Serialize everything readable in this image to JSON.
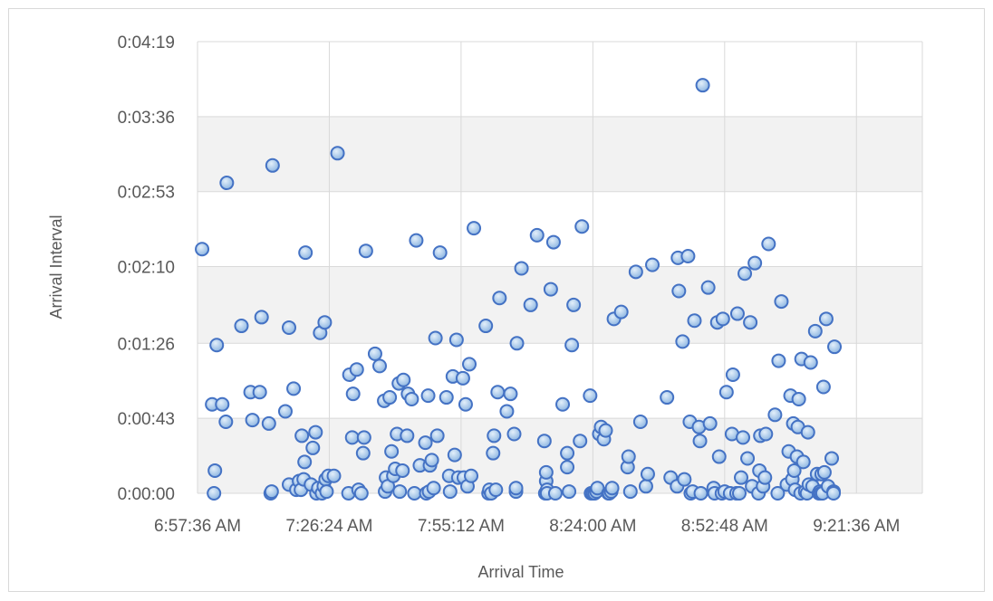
{
  "chart_data": {
    "type": "scatter",
    "title": "",
    "xlabel": "Arrival Time",
    "ylabel": "Arrival Interval",
    "x_ticks": [
      "6:57:36 AM",
      "7:26:24 AM",
      "7:55:12 AM",
      "8:24:00 AM",
      "8:52:48 AM",
      "9:21:36 AM"
    ],
    "y_ticks": [
      "0:00:00",
      "0:00:43",
      "0:01:26",
      "0:02:10",
      "0:02:53",
      "0:03:36",
      "0:04:19"
    ],
    "xlim": [
      "6:57:36 AM",
      "9:36:00 AM"
    ],
    "ylim": [
      "0:00:00",
      "0:04:19"
    ],
    "grid": true,
    "legend": "none",
    "colors": {
      "marker_fill": "#9dc3e6",
      "marker_stroke": "#4472c4",
      "grid": "#d9d9d9",
      "text": "#595959",
      "band": "#f2f2f2"
    },
    "series": [
      {
        "points": [
          [
            "6:58:36 AM",
            "0:02:20"
          ],
          [
            "7:00:48 AM",
            "0:00:51"
          ],
          [
            "7:01:12 AM",
            "0:00:00"
          ],
          [
            "7:01:24 AM",
            "0:00:13"
          ],
          [
            "7:01:48 AM",
            "0:01:25"
          ],
          [
            "7:03:00 AM",
            "0:00:51"
          ],
          [
            "7:03:48 AM",
            "0:00:41"
          ],
          [
            "7:04:00 AM",
            "0:02:58"
          ],
          [
            "7:07:12 AM",
            "0:01:36"
          ],
          [
            "7:09:12 AM",
            "0:00:58"
          ],
          [
            "7:09:36 AM",
            "0:00:42"
          ],
          [
            "7:11:12 AM",
            "0:00:58"
          ],
          [
            "7:11:36 AM",
            "0:01:41"
          ],
          [
            "7:13:12 AM",
            "0:00:40"
          ],
          [
            "7:13:36 AM",
            "0:00:00"
          ],
          [
            "7:13:48 AM",
            "0:00:01"
          ],
          [
            "7:14:00 AM",
            "0:03:08"
          ],
          [
            "7:16:48 AM",
            "0:00:47"
          ],
          [
            "7:17:36 AM",
            "0:00:05"
          ],
          [
            "7:17:36 AM",
            "0:01:35"
          ],
          [
            "7:18:36 AM",
            "0:01:00"
          ],
          [
            "7:19:12 AM",
            "0:00:02"
          ],
          [
            "7:19:48 AM",
            "0:00:07"
          ],
          [
            "7:20:12 AM",
            "0:00:02"
          ],
          [
            "7:20:24 AM",
            "0:00:33"
          ],
          [
            "7:20:48 AM",
            "0:00:08"
          ],
          [
            "7:21:00 AM",
            "0:00:18"
          ],
          [
            "7:21:12 AM",
            "0:02:18"
          ],
          [
            "7:22:24 AM",
            "0:00:05"
          ],
          [
            "7:22:48 AM",
            "0:00:26"
          ],
          [
            "7:23:24 AM",
            "0:00:35"
          ],
          [
            "7:23:36 AM",
            "0:00:00"
          ],
          [
            "7:24:00 AM",
            "0:00:03"
          ],
          [
            "7:24:24 AM",
            "0:01:32"
          ],
          [
            "7:24:48 AM",
            "0:00:00"
          ],
          [
            "7:25:12 AM",
            "0:00:04"
          ],
          [
            "7:25:24 AM",
            "0:01:38"
          ],
          [
            "7:25:36 AM",
            "0:00:08"
          ],
          [
            "7:25:48 AM",
            "0:00:01"
          ],
          [
            "7:26:12 AM",
            "0:00:10"
          ],
          [
            "7:27:24 AM",
            "0:00:10"
          ],
          [
            "7:28:12 AM",
            "0:03:15"
          ],
          [
            "7:30:36 AM",
            "0:00:00"
          ],
          [
            "7:30:48 AM",
            "0:01:08"
          ],
          [
            "7:31:24 AM",
            "0:00:32"
          ],
          [
            "7:31:36 AM",
            "0:00:57"
          ],
          [
            "7:32:24 AM",
            "0:01:11"
          ],
          [
            "7:32:48 AM",
            "0:00:02"
          ],
          [
            "7:33:24 AM",
            "0:00:00"
          ],
          [
            "7:33:48 AM",
            "0:00:23"
          ],
          [
            "7:34:00 AM",
            "0:00:32"
          ],
          [
            "7:34:24 AM",
            "0:02:19"
          ],
          [
            "7:36:24 AM",
            "0:01:20"
          ],
          [
            "7:37:24 AM",
            "0:01:13"
          ],
          [
            "7:38:24 AM",
            "0:00:53"
          ],
          [
            "7:38:36 AM",
            "0:00:01"
          ],
          [
            "7:38:48 AM",
            "0:00:09"
          ],
          [
            "7:39:12 AM",
            "0:00:04"
          ],
          [
            "7:39:36 AM",
            "0:00:55"
          ],
          [
            "7:40:00 AM",
            "0:00:24"
          ],
          [
            "7:40:24 AM",
            "0:00:10"
          ],
          [
            "7:40:48 AM",
            "0:00:14"
          ],
          [
            "7:41:12 AM",
            "0:00:34"
          ],
          [
            "7:41:36 AM",
            "0:01:03"
          ],
          [
            "7:41:48 AM",
            "0:00:01"
          ],
          [
            "7:42:24 AM",
            "0:00:13"
          ],
          [
            "7:42:36 AM",
            "0:01:05"
          ],
          [
            "7:43:24 AM",
            "0:00:33"
          ],
          [
            "7:43:36 AM",
            "0:00:57"
          ],
          [
            "7:44:24 AM",
            "0:00:54"
          ],
          [
            "7:45:00 AM",
            "0:00:00"
          ],
          [
            "7:45:24 AM",
            "0:02:25"
          ],
          [
            "7:46:12 AM",
            "0:00:16"
          ],
          [
            "7:47:24 AM",
            "0:00:29"
          ],
          [
            "7:47:36 AM",
            "0:00:00"
          ],
          [
            "7:48:00 AM",
            "0:00:56"
          ],
          [
            "7:48:12 AM",
            "0:00:01"
          ],
          [
            "7:48:24 AM",
            "0:00:16"
          ],
          [
            "7:48:48 AM",
            "0:00:19"
          ],
          [
            "7:49:12 AM",
            "0:00:03"
          ],
          [
            "7:49:36 AM",
            "0:01:29"
          ],
          [
            "7:50:00 AM",
            "0:00:33"
          ],
          [
            "7:50:36 AM",
            "0:02:18"
          ],
          [
            "7:52:00 AM",
            "0:00:55"
          ],
          [
            "7:52:36 AM",
            "0:00:10"
          ],
          [
            "7:52:48 AM",
            "0:00:01"
          ],
          [
            "7:53:24 AM",
            "0:01:07"
          ],
          [
            "7:53:48 AM",
            "0:00:22"
          ],
          [
            "7:54:12 AM",
            "0:01:28"
          ],
          [
            "7:54:36 AM",
            "0:00:09"
          ],
          [
            "7:55:36 AM",
            "0:01:06"
          ],
          [
            "7:55:48 AM",
            "0:00:09"
          ],
          [
            "7:56:12 AM",
            "0:00:51"
          ],
          [
            "7:56:36 AM",
            "0:00:04"
          ],
          [
            "7:57:00 AM",
            "0:01:14"
          ],
          [
            "7:57:24 AM",
            "0:00:10"
          ],
          [
            "7:58:00 AM",
            "0:02:32"
          ],
          [
            "8:00:36 AM",
            "0:01:36"
          ],
          [
            "8:01:12 AM",
            "0:00:00"
          ],
          [
            "8:01:24 AM",
            "0:00:02"
          ],
          [
            "8:01:48 AM",
            "0:00:00"
          ],
          [
            "8:02:12 AM",
            "0:00:23"
          ],
          [
            "8:02:24 AM",
            "0:00:33"
          ],
          [
            "8:02:48 AM",
            "0:00:02"
          ],
          [
            "8:03:12 AM",
            "0:00:58"
          ],
          [
            "8:03:36 AM",
            "0:01:52"
          ],
          [
            "8:05:12 AM",
            "0:00:47"
          ],
          [
            "8:06:00 AM",
            "0:00:57"
          ],
          [
            "8:06:48 AM",
            "0:00:34"
          ],
          [
            "8:07:12 AM",
            "0:00:01"
          ],
          [
            "8:07:12 AM",
            "0:00:03"
          ],
          [
            "8:07:24 AM",
            "0:01:26"
          ],
          [
            "8:08:24 AM",
            "0:02:09"
          ],
          [
            "8:10:24 AM",
            "0:01:48"
          ],
          [
            "8:11:48 AM",
            "0:02:28"
          ],
          [
            "8:13:24 AM",
            "0:00:30"
          ],
          [
            "8:13:36 AM",
            "0:00:00"
          ],
          [
            "8:13:48 AM",
            "0:00:07"
          ],
          [
            "8:13:48 AM",
            "0:00:12"
          ],
          [
            "8:14:00 AM",
            "0:00:02"
          ],
          [
            "8:14:00 AM",
            "0:00:00"
          ],
          [
            "8:14:48 AM",
            "0:01:57"
          ],
          [
            "8:15:24 AM",
            "0:02:24"
          ],
          [
            "8:15:48 AM",
            "0:00:00"
          ],
          [
            "8:17:24 AM",
            "0:00:51"
          ],
          [
            "8:18:24 AM",
            "0:00:23"
          ],
          [
            "8:18:24 AM",
            "0:00:15"
          ],
          [
            "8:18:48 AM",
            "0:00:01"
          ],
          [
            "8:19:24 AM",
            "0:01:25"
          ],
          [
            "8:19:48 AM",
            "0:01:48"
          ],
          [
            "8:21:12 AM",
            "0:00:30"
          ],
          [
            "8:21:36 AM",
            "0:02:33"
          ],
          [
            "8:23:24 AM",
            "0:00:56"
          ],
          [
            "8:23:36 AM",
            "0:00:00"
          ],
          [
            "8:24:00 AM",
            "0:00:00"
          ],
          [
            "8:24:24 AM",
            "0:00:00"
          ],
          [
            "8:24:48 AM",
            "0:00:01"
          ],
          [
            "8:25:00 AM",
            "0:00:03"
          ],
          [
            "8:25:24 AM",
            "0:00:34"
          ],
          [
            "8:25:48 AM",
            "0:00:38"
          ],
          [
            "8:26:24 AM",
            "0:00:31"
          ],
          [
            "8:26:48 AM",
            "0:00:36"
          ],
          [
            "8:27:24 AM",
            "0:00:00"
          ],
          [
            "8:27:36 AM",
            "0:00:00"
          ],
          [
            "8:28:00 AM",
            "0:00:01"
          ],
          [
            "8:28:12 AM",
            "0:00:03"
          ],
          [
            "8:28:36 AM",
            "0:01:40"
          ],
          [
            "8:30:12 AM",
            "0:01:44"
          ],
          [
            "8:31:36 AM",
            "0:00:15"
          ],
          [
            "8:31:48 AM",
            "0:00:21"
          ],
          [
            "8:32:12 AM",
            "0:00:01"
          ],
          [
            "8:33:24 AM",
            "0:02:07"
          ],
          [
            "8:34:24 AM",
            "0:00:41"
          ],
          [
            "8:35:36 AM",
            "0:00:04"
          ],
          [
            "8:36:00 AM",
            "0:00:11"
          ],
          [
            "8:37:00 AM",
            "0:02:11"
          ],
          [
            "8:40:12 AM",
            "0:00:55"
          ],
          [
            "8:41:00 AM",
            "0:00:09"
          ],
          [
            "8:42:24 AM",
            "0:00:04"
          ],
          [
            "8:42:36 AM",
            "0:02:15"
          ],
          [
            "8:42:48 AM",
            "0:01:56"
          ],
          [
            "8:43:36 AM",
            "0:01:27"
          ],
          [
            "8:44:00 AM",
            "0:00:08"
          ],
          [
            "8:44:48 AM",
            "0:02:16"
          ],
          [
            "8:45:12 AM",
            "0:00:41"
          ],
          [
            "8:45:24 AM",
            "0:00:00"
          ],
          [
            "8:45:48 AM",
            "0:00:01"
          ],
          [
            "8:46:12 AM",
            "0:01:39"
          ],
          [
            "8:47:12 AM",
            "0:00:38"
          ],
          [
            "8:47:24 AM",
            "0:00:30"
          ],
          [
            "8:47:36 AM",
            "0:00:00"
          ],
          [
            "8:48:00 AM",
            "0:03:54"
          ],
          [
            "8:49:12 AM",
            "0:01:58"
          ],
          [
            "8:49:36 AM",
            "0:00:40"
          ],
          [
            "8:50:24 AM",
            "0:00:03"
          ],
          [
            "8:50:36 AM",
            "0:00:00"
          ],
          [
            "8:51:12 AM",
            "0:01:38"
          ],
          [
            "8:51:36 AM",
            "0:00:21"
          ],
          [
            "8:52:12 AM",
            "0:00:00"
          ],
          [
            "8:52:24 AM",
            "0:01:40"
          ],
          [
            "8:52:48 AM",
            "0:00:01"
          ],
          [
            "8:53:12 AM",
            "0:00:58"
          ],
          [
            "8:54:00 AM",
            "0:00:00"
          ],
          [
            "8:54:24 AM",
            "0:00:34"
          ],
          [
            "8:54:36 AM",
            "0:01:08"
          ],
          [
            "8:55:24 AM",
            "0:00:00"
          ],
          [
            "8:55:36 AM",
            "0:01:43"
          ],
          [
            "8:56:00 AM",
            "0:00:00"
          ],
          [
            "8:56:24 AM",
            "0:00:09"
          ],
          [
            "8:56:48 AM",
            "0:00:32"
          ],
          [
            "8:57:12 AM",
            "0:02:06"
          ],
          [
            "8:57:48 AM",
            "0:00:20"
          ],
          [
            "8:58:24 AM",
            "0:01:38"
          ],
          [
            "8:58:48 AM",
            "0:00:04"
          ],
          [
            "8:59:24 AM",
            "0:02:12"
          ],
          [
            "9:00:12 AM",
            "0:00:00"
          ],
          [
            "9:00:24 AM",
            "0:00:13"
          ],
          [
            "9:00:36 AM",
            "0:00:33"
          ],
          [
            "9:01:12 AM",
            "0:00:04"
          ],
          [
            "9:01:36 AM",
            "0:00:09"
          ],
          [
            "9:01:48 AM",
            "0:00:34"
          ],
          [
            "9:02:24 AM",
            "0:02:23"
          ],
          [
            "9:03:48 AM",
            "0:00:45"
          ],
          [
            "9:04:24 AM",
            "0:00:00"
          ],
          [
            "9:04:36 AM",
            "0:01:16"
          ],
          [
            "9:05:12 AM",
            "0:01:50"
          ],
          [
            "9:06:24 AM",
            "0:00:05"
          ],
          [
            "9:06:48 AM",
            "0:00:24"
          ],
          [
            "9:07:12 AM",
            "0:00:56"
          ],
          [
            "9:07:36 AM",
            "0:00:08"
          ],
          [
            "9:07:48 AM",
            "0:00:40"
          ],
          [
            "9:08:00 AM",
            "0:00:13"
          ],
          [
            "9:08:12 AM",
            "0:00:02"
          ],
          [
            "9:08:36 AM",
            "0:00:21"
          ],
          [
            "9:08:48 AM",
            "0:00:38"
          ],
          [
            "9:09:00 AM",
            "0:00:54"
          ],
          [
            "9:09:24 AM",
            "0:00:00"
          ],
          [
            "9:09:36 AM",
            "0:01:17"
          ],
          [
            "9:10:00 AM",
            "0:00:18"
          ],
          [
            "9:10:24 AM",
            "0:00:01"
          ],
          [
            "9:10:48 AM",
            "0:00:00"
          ],
          [
            "9:11:00 AM",
            "0:00:35"
          ],
          [
            "9:11:12 AM",
            "0:00:05"
          ],
          [
            "9:11:36 AM",
            "0:01:15"
          ],
          [
            "9:12:00 AM",
            "0:00:04"
          ],
          [
            "9:12:36 AM",
            "0:01:33"
          ],
          [
            "9:13:00 AM",
            "0:00:11"
          ],
          [
            "9:13:24 AM",
            "0:00:00"
          ],
          [
            "9:13:36 AM",
            "0:00:01"
          ],
          [
            "9:13:48 AM",
            "0:00:00"
          ],
          [
            "9:14:00 AM",
            "0:00:11"
          ],
          [
            "9:14:12 AM",
            "0:00:00"
          ],
          [
            "9:14:24 AM",
            "0:01:01"
          ],
          [
            "9:14:36 AM",
            "0:00:12"
          ],
          [
            "9:15:00 AM",
            "0:01:40"
          ],
          [
            "9:15:24 AM",
            "0:00:04"
          ],
          [
            "9:16:12 AM",
            "0:00:20"
          ],
          [
            "9:16:36 AM",
            "0:00:01"
          ],
          [
            "9:16:36 AM",
            "0:00:00"
          ],
          [
            "9:16:48 AM",
            "0:01:24"
          ]
        ]
      }
    ]
  }
}
